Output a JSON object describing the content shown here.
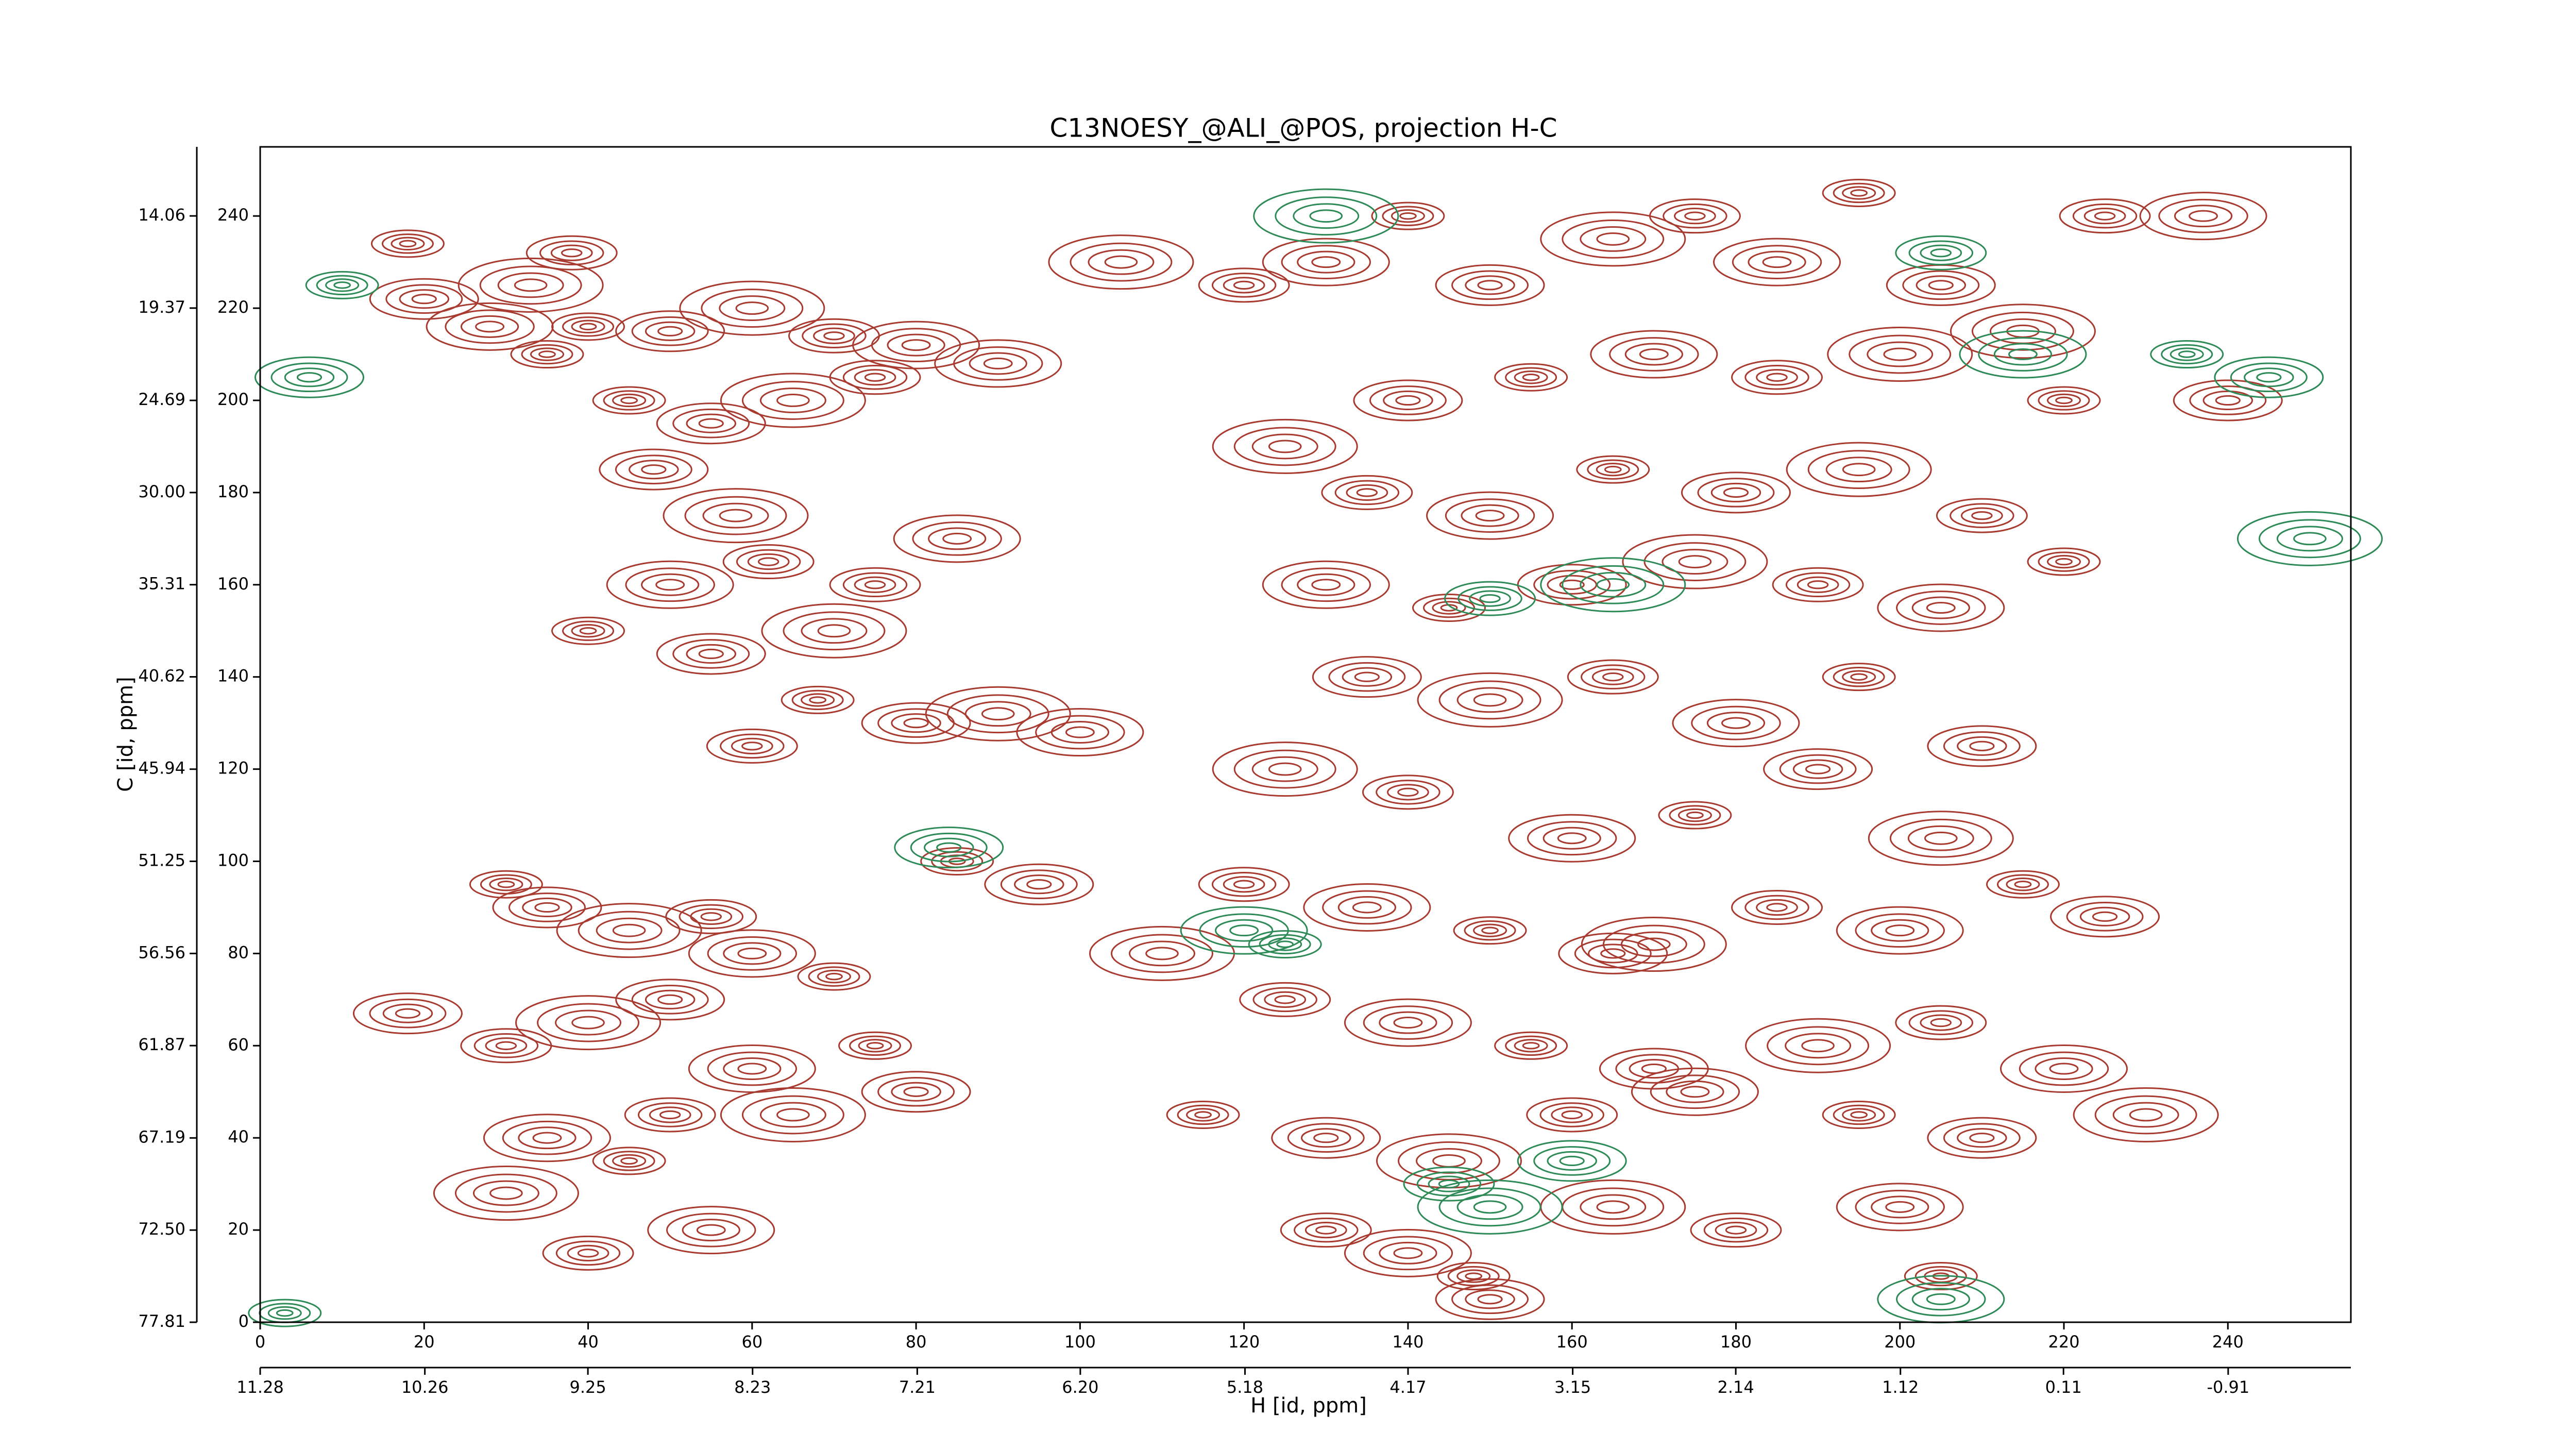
{
  "chart_data": {
    "type": "contour",
    "title": "C13NOESY_@ALI_@POS, projection H-C",
    "xlabel": "H [id, ppm]",
    "ylabel": "C [id, ppm]",
    "xlim": [
      0,
      255
    ],
    "ylim": [
      0,
      255
    ],
    "xticks": [
      0,
      20,
      40,
      60,
      80,
      100,
      120,
      140,
      160,
      180,
      200,
      220,
      240
    ],
    "yticks": [
      0,
      20,
      40,
      60,
      80,
      100,
      120,
      140,
      160,
      180,
      200,
      220,
      240
    ],
    "x2lim": [
      11.28,
      -1.67
    ],
    "x2ticks": [
      11.28,
      10.26,
      9.25,
      8.23,
      7.21,
      {
        "value": 6.2,
        "label": "6.20"
      },
      5.18,
      4.17,
      3.15,
      2.14,
      1.12,
      0.11,
      -0.91
    ],
    "y2lim": [
      77.81,
      10.08
    ],
    "y2ticks": [
      77.81,
      {
        "value": 72.5,
        "label": "72.50"
      },
      67.19,
      61.87,
      56.56,
      51.25,
      45.94,
      40.62,
      35.31,
      {
        "value": 30,
        "label": "30.00"
      },
      24.69,
      19.37,
      14.06
    ],
    "series": [
      {
        "color": "#a83a30",
        "x": [
          18,
          20,
          33,
          38,
          28,
          40,
          50,
          60,
          70,
          80,
          45,
          55,
          65,
          75,
          90,
          35,
          48,
          58,
          62,
          50,
          40,
          55,
          70,
          75,
          85,
          68,
          80,
          90,
          60,
          100,
          30,
          35,
          45,
          55,
          60,
          70,
          50,
          40,
          30,
          60,
          75,
          80,
          65,
          50,
          35,
          45,
          18,
          30,
          40,
          55,
          85,
          95,
          105,
          120,
          130,
          140,
          150,
          165,
          175,
          185,
          195,
          205,
          215,
          225,
          237,
          220,
          240,
          200,
          185,
          170,
          155,
          140,
          125,
          135,
          150,
          165,
          180,
          195,
          210,
          130,
          145,
          160,
          175,
          190,
          205,
          220,
          135,
          150,
          165,
          180,
          195,
          210,
          125,
          140,
          160,
          175,
          190,
          205,
          120,
          135,
          150,
          165,
          170,
          185,
          200,
          215,
          225,
          110,
          125,
          140,
          155,
          170,
          190,
          205,
          220,
          115,
          130,
          145,
          160,
          175,
          195,
          210,
          230,
          130,
          140,
          148,
          150,
          165,
          180,
          200,
          205
        ],
        "y": [
          234,
          222,
          225,
          232,
          216,
          216,
          215,
          220,
          214,
          212,
          200,
          195,
          200,
          205,
          208,
          210,
          185,
          175,
          165,
          160,
          150,
          145,
          150,
          160,
          170,
          135,
          130,
          132,
          125,
          128,
          95,
          90,
          85,
          88,
          80,
          75,
          70,
          65,
          60,
          55,
          60,
          50,
          45,
          45,
          40,
          35,
          67,
          28,
          15,
          20,
          100,
          95,
          230,
          225,
          230,
          240,
          225,
          235,
          240,
          230,
          245,
          225,
          215,
          240,
          240,
          200,
          200,
          210,
          205,
          210,
          205,
          200,
          190,
          180,
          175,
          185,
          180,
          185,
          175,
          160,
          155,
          160,
          165,
          160,
          155,
          165,
          140,
          135,
          140,
          130,
          140,
          125,
          120,
          115,
          105,
          110,
          120,
          105,
          95,
          90,
          85,
          80,
          82,
          90,
          85,
          95,
          88,
          80,
          70,
          65,
          60,
          55,
          60,
          65,
          55,
          45,
          40,
          35,
          45,
          50,
          45,
          40,
          45,
          20,
          15,
          10,
          5,
          25,
          20,
          25,
          10
        ]
      },
      {
        "color": "#2e8b57",
        "x": [
          10,
          6,
          130,
          205,
          215,
          235,
          245,
          165,
          150,
          120,
          125,
          160,
          150,
          145,
          205,
          3,
          84,
          250
        ],
        "y": [
          225,
          205,
          240,
          232,
          210,
          210,
          205,
          160,
          157,
          85,
          82,
          35,
          25,
          30,
          5,
          2,
          103,
          170
        ]
      }
    ]
  }
}
